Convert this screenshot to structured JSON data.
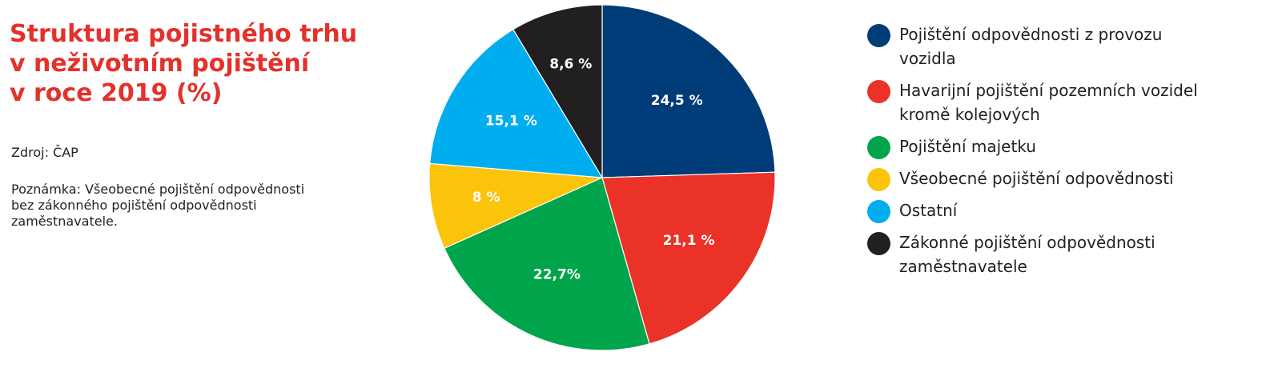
{
  "title_lines": [
    "Struktura pojistného trhu",
    "v neživotním pojištění",
    "v roce 2019 (%)"
  ],
  "source": "Zdroj: ČAP",
  "note_lines": [
    "Poznámka: Všeobecné pojištění odpovědnosti",
    "bez zákonného pojištění odpovědnosti",
    "zaměstnavatele."
  ],
  "legend": [
    {
      "lines": [
        "Pojištění odpovědnosti z provozu",
        "vozidla"
      ],
      "color": "#003c78"
    },
    {
      "lines": [
        "Havarijní pojištění pozemních vozidel",
        "kromě kolejových"
      ],
      "color": "#ea3228"
    },
    {
      "lines": [
        "Pojištění majetku"
      ],
      "color": "#00a44a"
    },
    {
      "lines": [
        "Všeobecné pojištění odpovědnosti"
      ],
      "color": "#fcc30b"
    },
    {
      "lines": [
        "Ostatní"
      ],
      "color": "#00aeef"
    },
    {
      "lines": [
        "Zákonné pojištění odpovědnosti",
        "zaměstnavatele"
      ],
      "color": "#221f20"
    }
  ],
  "chart_data": {
    "type": "pie",
    "title": "Struktura pojistného trhu v neživotním pojištění v roce 2019 (%)",
    "slices": [
      {
        "name": "Pojištění odpovědnosti z provozu vozidla",
        "value": 24.5,
        "label": "24,5 %",
        "color": "#003c78"
      },
      {
        "name": "Havarijní pojištění pozemních vozidel kromě kolejových",
        "value": 21.1,
        "label": "21,1 %",
        "color": "#ea3228"
      },
      {
        "name": "Pojištění majetku",
        "value": 22.7,
        "label": "22,7%",
        "color": "#00a44a"
      },
      {
        "name": "Všeobecné pojištění odpovědnosti",
        "value": 8.0,
        "label": "8 %",
        "color": "#fcc30b"
      },
      {
        "name": "Ostatní",
        "value": 15.1,
        "label": "15,1 %",
        "color": "#00aeef"
      },
      {
        "name": "Zákonné pojištění odpovědnosti zaměstnavatele",
        "value": 8.6,
        "label": "8,6 %",
        "color": "#221f20"
      }
    ],
    "start": "12 o'clock",
    "direction": "clockwise",
    "legend_position": "right"
  }
}
